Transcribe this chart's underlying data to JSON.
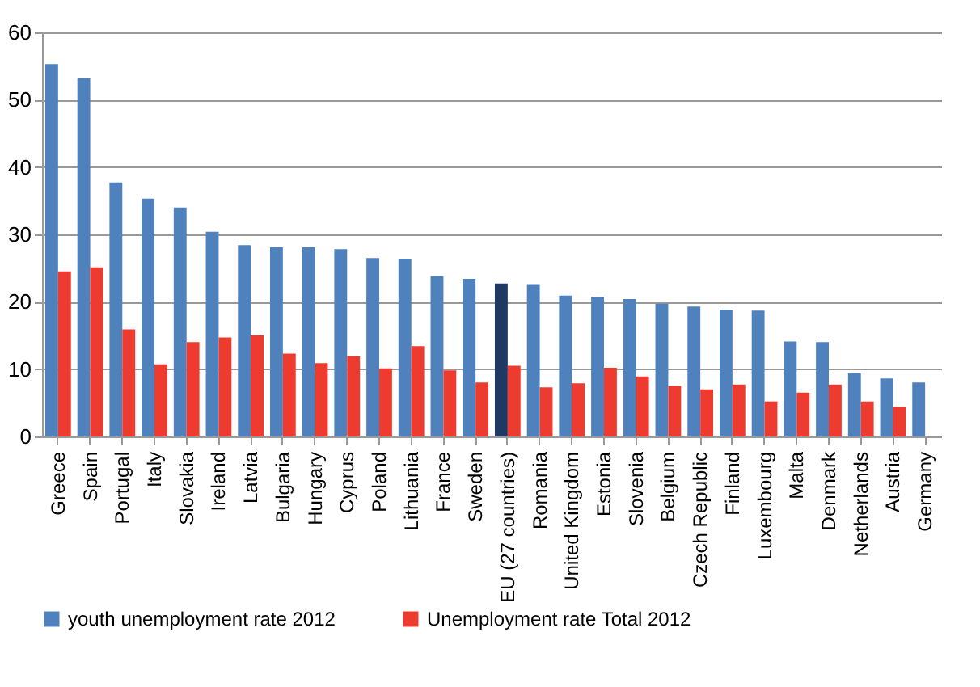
{
  "chart_data": {
    "type": "bar",
    "categories": [
      "Greece",
      "Spain",
      "Portugal",
      "Italy",
      "Slovakia",
      "Ireland",
      "Latvia",
      "Bulgaria",
      "Hungary",
      "Cyprus",
      "Poland",
      "Lithuania",
      "France",
      "Sweden",
      "EU (27 countries)",
      "Romania",
      "United Kingdom",
      "Estonia",
      "Slovenia",
      "Belgium",
      "Czech Republic",
      "Finland",
      "Luxembourg",
      "Malta",
      "Denmark",
      "Netherlands",
      "Austria",
      "Germany"
    ],
    "series": [
      {
        "name": "youth unemployment rate 2012",
        "color": "#4f81bd",
        "colors": [
          "#4f81bd",
          "#4f81bd",
          "#4f81bd",
          "#4f81bd",
          "#4f81bd",
          "#4f81bd",
          "#4f81bd",
          "#4f81bd",
          "#4f81bd",
          "#4f81bd",
          "#4f81bd",
          "#4f81bd",
          "#4f81bd",
          "#4f81bd",
          "#1f3864",
          "#4f81bd",
          "#4f81bd",
          "#4f81bd",
          "#4f81bd",
          "#4f81bd",
          "#4f81bd",
          "#4f81bd",
          "#4f81bd",
          "#4f81bd",
          "#4f81bd",
          "#4f81bd",
          "#4f81bd",
          "#4f81bd"
        ],
        "values": [
          55.3,
          53.2,
          37.7,
          35.3,
          34.0,
          30.4,
          28.4,
          28.1,
          28.1,
          27.8,
          26.5,
          26.4,
          23.8,
          23.4,
          22.7,
          22.5,
          20.9,
          20.7,
          20.4,
          19.7,
          19.3,
          18.8,
          18.7,
          14.1,
          14.0,
          9.4,
          8.6,
          8.0
        ]
      },
      {
        "name": "Unemployment rate Total 2012",
        "color": "#ee3b30",
        "values": [
          24.5,
          25.1,
          15.9,
          10.7,
          14.0,
          14.7,
          15.0,
          12.3,
          10.9,
          11.9,
          10.1,
          13.4,
          9.8,
          8.0,
          10.5,
          7.3,
          7.9,
          10.2,
          8.9,
          7.5,
          7.0,
          7.7,
          5.2,
          6.5,
          7.7,
          5.2,
          4.4,
          null
        ]
      }
    ],
    "ylim": [
      0,
      60
    ],
    "yticks": [
      0,
      10,
      20,
      30,
      40,
      50,
      60
    ],
    "grid": "y",
    "legend": "bottom"
  }
}
